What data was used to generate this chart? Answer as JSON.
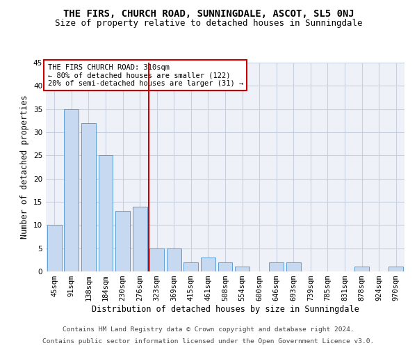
{
  "title1": "THE FIRS, CHURCH ROAD, SUNNINGDALE, ASCOT, SL5 0NJ",
  "title2": "Size of property relative to detached houses in Sunningdale",
  "xlabel": "Distribution of detached houses by size in Sunningdale",
  "ylabel": "Number of detached properties",
  "categories": [
    "45sqm",
    "91sqm",
    "138sqm",
    "184sqm",
    "230sqm",
    "276sqm",
    "323sqm",
    "369sqm",
    "415sqm",
    "461sqm",
    "508sqm",
    "554sqm",
    "600sqm",
    "646sqm",
    "693sqm",
    "739sqm",
    "785sqm",
    "831sqm",
    "878sqm",
    "924sqm",
    "970sqm"
  ],
  "values": [
    10,
    35,
    32,
    25,
    13,
    14,
    5,
    5,
    2,
    3,
    2,
    1,
    0,
    2,
    2,
    0,
    0,
    0,
    1,
    0,
    1
  ],
  "bar_color": "#c6d9f0",
  "bar_edge_color": "#5b9bd5",
  "vline_x": 5.54,
  "vline_color": "#cc0000",
  "annotation_text": "THE FIRS CHURCH ROAD: 310sqm\n← 80% of detached houses are smaller (122)\n20% of semi-detached houses are larger (31) →",
  "annotation_box_color": "#cc0000",
  "ylim": [
    0,
    45
  ],
  "yticks": [
    0,
    5,
    10,
    15,
    20,
    25,
    30,
    35,
    40,
    45
  ],
  "grid_color": "#c8d0e0",
  "background_color": "#eef2f8",
  "footer1": "Contains HM Land Registry data © Crown copyright and database right 2024.",
  "footer2": "Contains public sector information licensed under the Open Government Licence v3.0.",
  "title1_fontsize": 10,
  "title2_fontsize": 9,
  "xlabel_fontsize": 8.5,
  "ylabel_fontsize": 8.5,
  "tick_fontsize": 7.5,
  "annotation_fontsize": 7.5,
  "footer_fontsize": 6.8
}
